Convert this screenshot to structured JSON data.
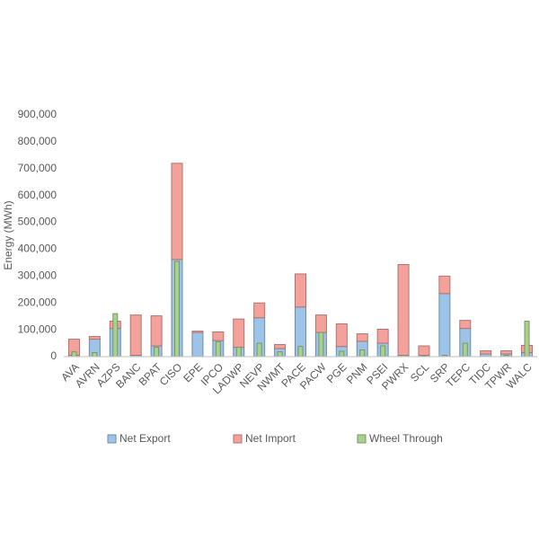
{
  "chart_data": {
    "type": "bar",
    "stacked": true,
    "y_label": "Energy (MWh)",
    "categories": [
      "AVA",
      "AVRN",
      "AZPS",
      "BANC",
      "BPAT",
      "CISO",
      "EPE",
      "IPCO",
      "LADWP",
      "NEVP",
      "NWMT",
      "PACE",
      "PACW",
      "PGE",
      "PNM",
      "PSEI",
      "PWRX",
      "SCL",
      "SRP",
      "TEPC",
      "TIDC",
      "TPWR",
      "WALC"
    ],
    "series": [
      {
        "name": "Net Export",
        "color": "#9dc3e6",
        "stack": true,
        "values": [
          5000,
          65000,
          105000,
          5000,
          40000,
          362000,
          90000,
          60000,
          35000,
          145000,
          30000,
          185000,
          90000,
          38000,
          57000,
          50000,
          5000,
          5000,
          235000,
          105000,
          10000,
          10000,
          15000
        ]
      },
      {
        "name": "Net Import",
        "color": "#f4a19b",
        "stack": true,
        "values": [
          60000,
          10000,
          27000,
          150000,
          112000,
          358000,
          5000,
          32000,
          105000,
          55000,
          15000,
          123000,
          65000,
          84000,
          28000,
          52000,
          338000,
          35000,
          65000,
          30000,
          12000,
          12000,
          27000
        ]
      },
      {
        "name": "Wheel Through",
        "color": "#a9d18e",
        "stack": false,
        "values": [
          18000,
          15000,
          160000,
          0,
          35000,
          355000,
          0,
          55000,
          35000,
          50000,
          18000,
          38000,
          90000,
          20000,
          25000,
          40000,
          5000,
          3000,
          5000,
          50000,
          0,
          5000,
          132000
        ]
      }
    ],
    "ylim": [
      0,
      900000
    ],
    "yticks": [
      0,
      {
        "value": 100000,
        "label": "100,000"
      },
      {
        "value": 200000,
        "label": "200,000"
      },
      {
        "value": 300000,
        "label": "300,000"
      },
      {
        "value": 400000,
        "label": "400,000"
      },
      {
        "value": 500000,
        "label": "500,000"
      },
      {
        "value": 600000,
        "label": "600,000"
      },
      {
        "value": 700000,
        "label": "700,000"
      },
      {
        "value": 800000,
        "label": "800,000"
      },
      {
        "value": 900000,
        "label": "900,000"
      }
    ],
    "grid": false,
    "legend": "bottom"
  }
}
